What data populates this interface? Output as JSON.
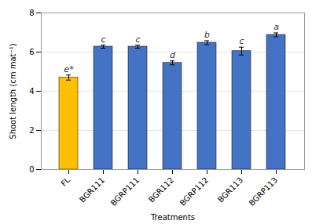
{
  "chart_data": {
    "type": "bar",
    "categories": [
      "FL",
      "BGR111",
      "BGRP111",
      "BGR112",
      "BGRP112",
      "BGR113",
      "BGRP113"
    ],
    "values": [
      4.7,
      6.28,
      6.28,
      5.45,
      6.48,
      6.05,
      6.88
    ],
    "errors": [
      0.13,
      0.08,
      0.08,
      0.1,
      0.1,
      0.2,
      0.1
    ],
    "labels": [
      "e*",
      "c",
      "c",
      "d",
      "b",
      "c",
      "a"
    ],
    "colors": [
      "#FFC000",
      "#4472C4",
      "#4472C4",
      "#4472C4",
      "#4472C4",
      "#4472C4",
      "#4472C4"
    ],
    "xlabel": "Treatments",
    "ylabel": "Shoot length (cm mat⁻¹)",
    "ylim": [
      0,
      8
    ],
    "yticks": [
      0,
      2,
      4,
      6,
      8
    ],
    "grid": true
  }
}
